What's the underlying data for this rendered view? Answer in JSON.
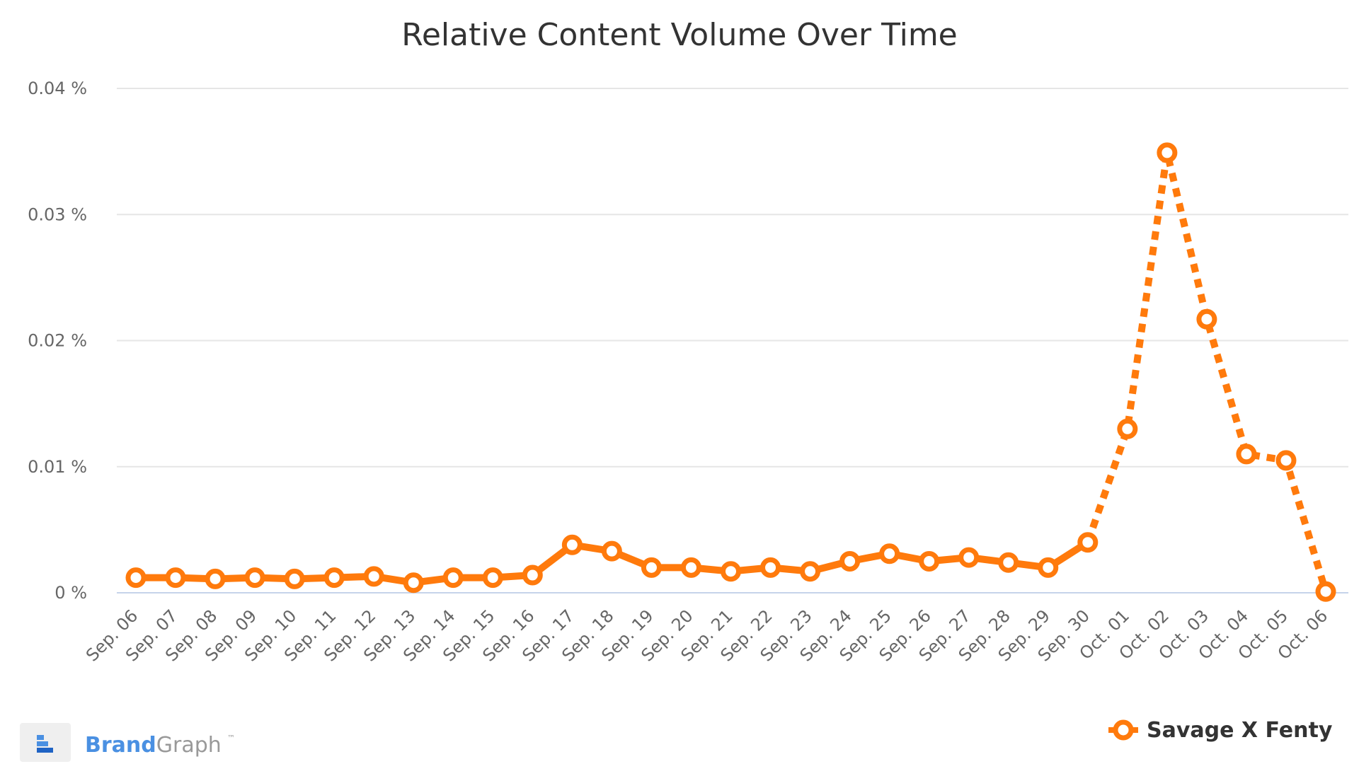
{
  "chart_data": {
    "type": "line",
    "title": "Relative Content Volume Over Time",
    "xlabel": "",
    "ylabel": "",
    "categories": [
      "Sep. 06",
      "Sep. 07",
      "Sep. 08",
      "Sep. 09",
      "Sep. 10",
      "Sep. 11",
      "Sep. 12",
      "Sep. 13",
      "Sep. 14",
      "Sep. 15",
      "Sep. 16",
      "Sep. 17",
      "Sep. 18",
      "Sep. 19",
      "Sep. 20",
      "Sep. 21",
      "Sep. 22",
      "Sep. 23",
      "Sep. 24",
      "Sep. 25",
      "Sep. 26",
      "Sep. 27",
      "Sep. 28",
      "Sep. 29",
      "Sep. 30",
      "Oct. 01",
      "Oct. 02",
      "Oct. 03",
      "Oct. 04",
      "Oct. 05",
      "Oct. 06"
    ],
    "y_ticks": [
      "0.04 %",
      "0.03 %",
      "0.02 %",
      "0.01 %",
      "0 %"
    ],
    "ylim": [
      0,
      0.04
    ],
    "y_unit": "%",
    "grid": true,
    "series": [
      {
        "name": "Savage X Fenty",
        "color": "#FF7A0C",
        "values": [
          0.0012,
          0.0012,
          0.0011,
          0.0012,
          0.0011,
          0.0012,
          0.0013,
          0.0008,
          0.0012,
          0.0012,
          0.0014,
          0.0038,
          0.0033,
          0.002,
          0.002,
          0.0017,
          0.002,
          0.0017,
          0.0025,
          0.0031,
          0.0025,
          0.0028,
          0.0024,
          0.002,
          0.004,
          0.013,
          0.0349,
          0.0217,
          0.011,
          0.0105,
          0.0001
        ],
        "dashed_from_index": 24
      }
    ],
    "legend": {
      "position": "bottom-right",
      "label": "Savage X Fenty"
    }
  },
  "brand": {
    "name_part1": "Brand",
    "name_part2": "Graph",
    "trademark": "™",
    "color_part1": "#4A90E2",
    "color_part2": "#999999"
  }
}
